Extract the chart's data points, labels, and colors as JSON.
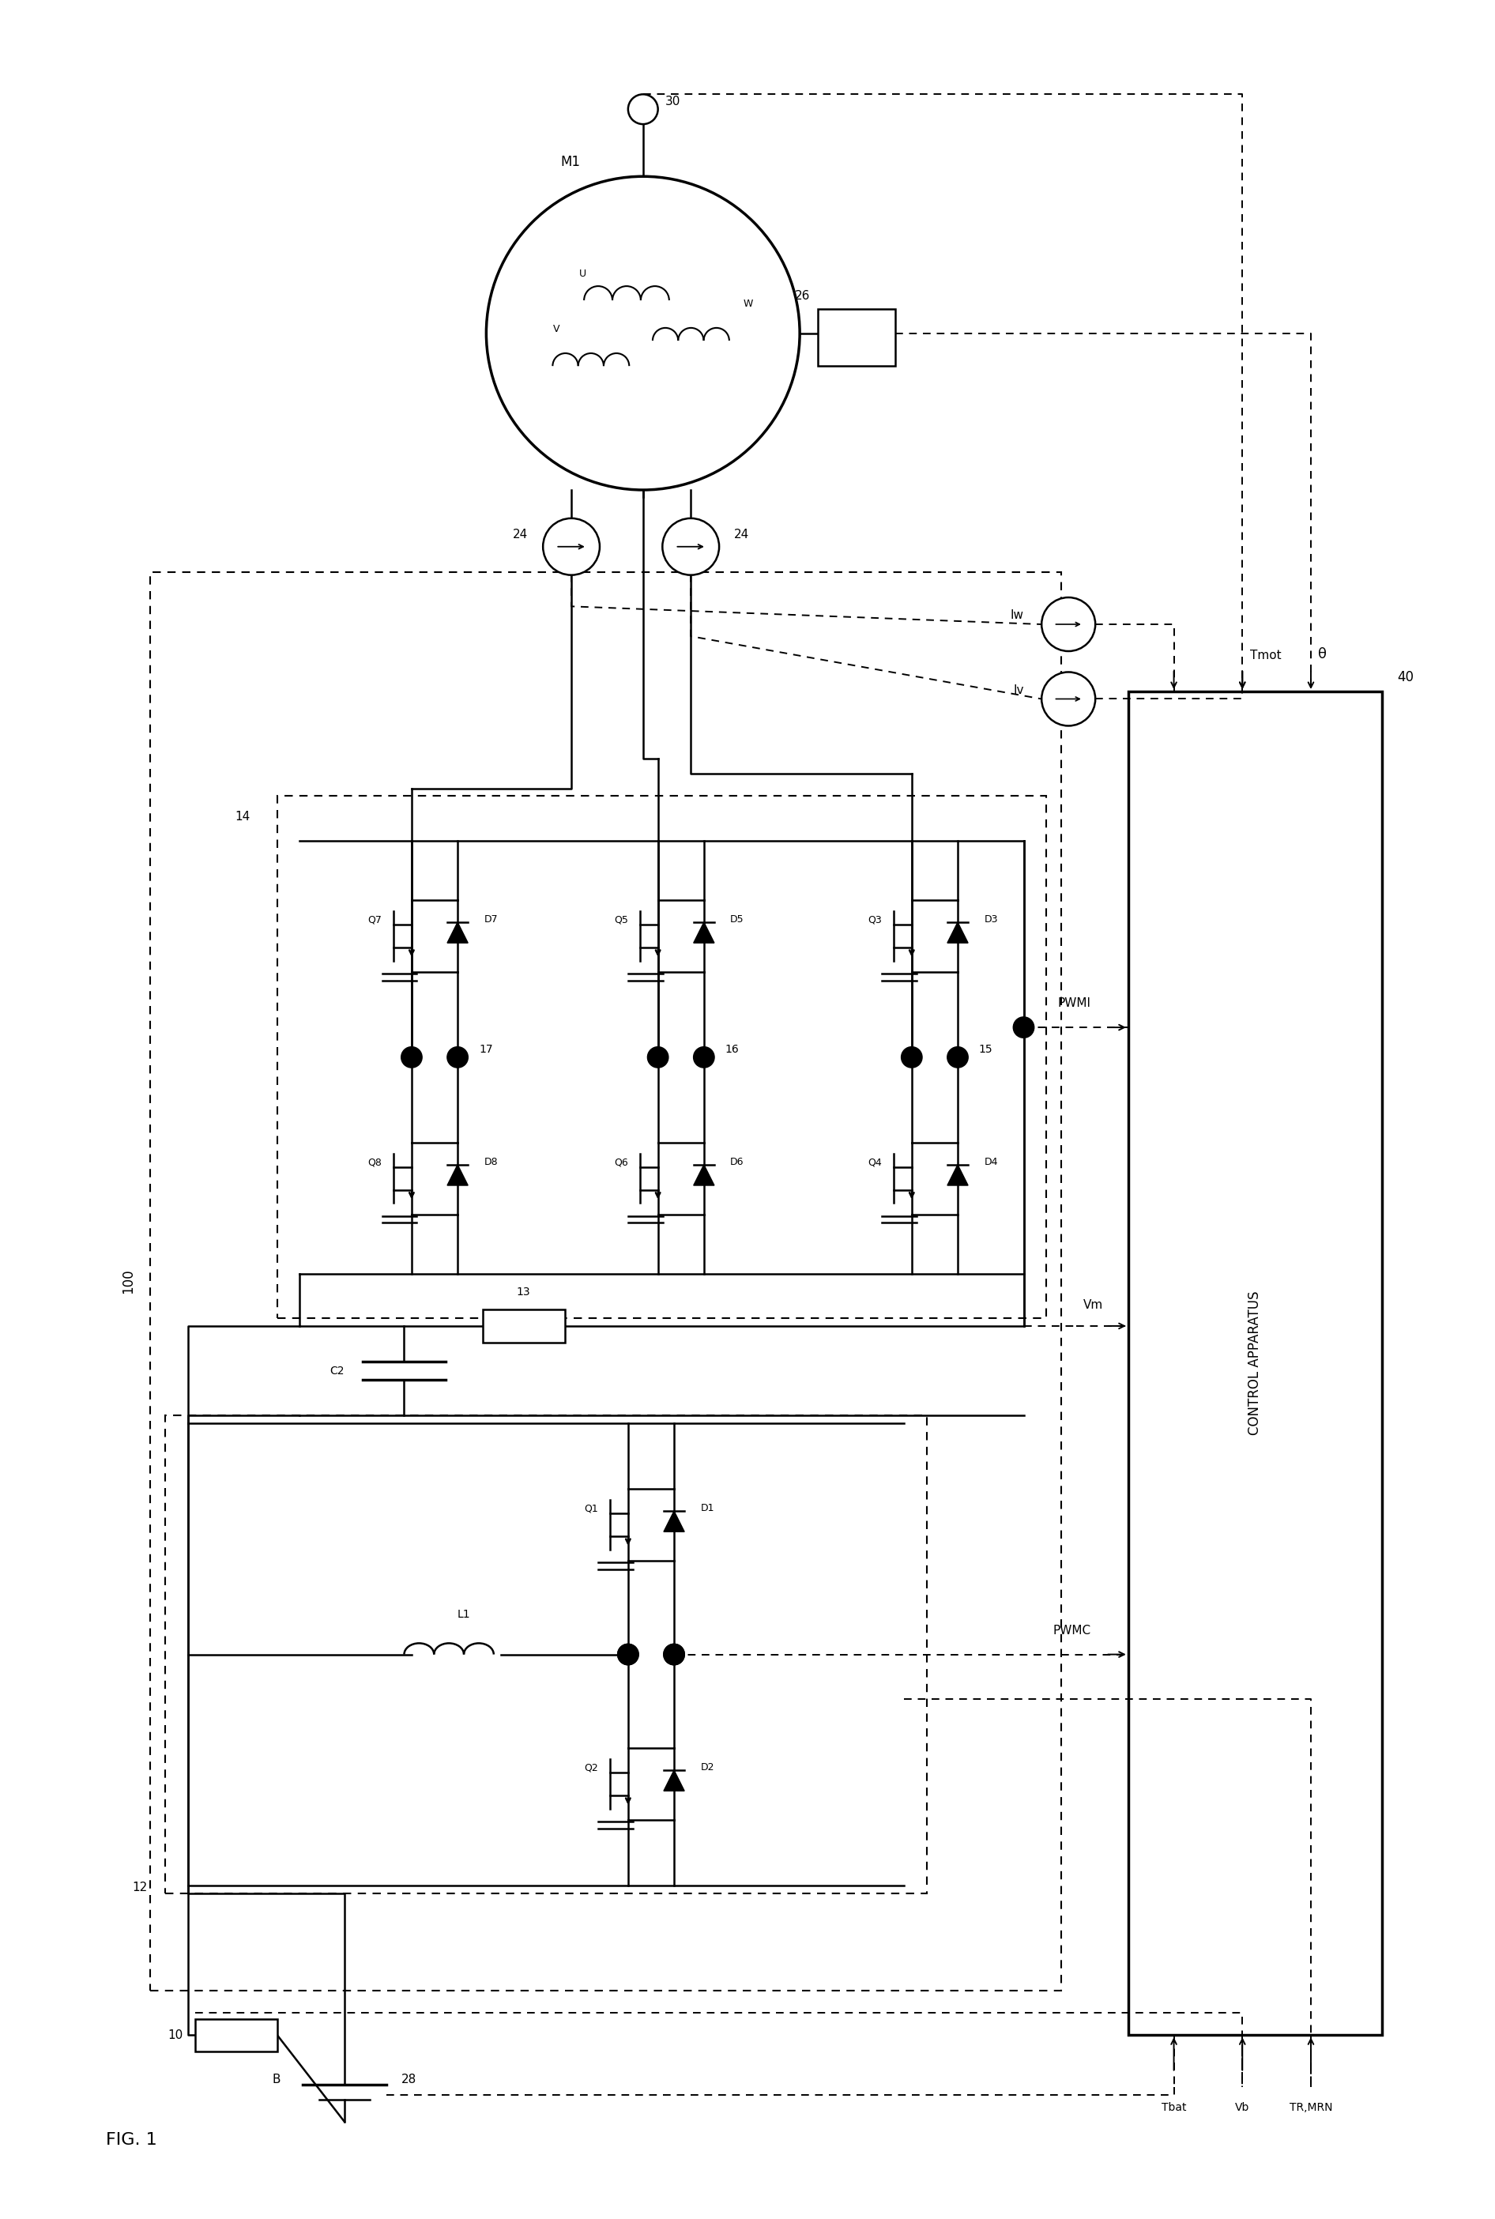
{
  "fig_label": "FIG.1",
  "bg_color": "#ffffff",
  "lw_main": 1.8,
  "lw_thick": 2.5,
  "lw_dash": 1.4,
  "component_labels": {
    "motor": "M1",
    "motor_terminal": "30",
    "resolver": "26",
    "cs_left": "24",
    "cs_right": "24",
    "inv_box": "14",
    "inv_ph_left": "17",
    "inv_ph_mid": "16",
    "inv_ph_right": "15",
    "q7": "Q7",
    "d7": "D7",
    "q8": "Q8",
    "d8": "D8",
    "q5": "Q5",
    "d5": "D5",
    "q6": "Q6",
    "d6": "D6",
    "q3": "Q3",
    "d3": "D3",
    "q4": "Q4",
    "d4": "D4",
    "q1": "Q1",
    "d1": "D1",
    "q2": "Q2",
    "d2": "D2",
    "reactor": "13",
    "cap": "C2",
    "conv_box": "12",
    "inductor": "L1",
    "battery_box": "B",
    "battery_ref": "28",
    "sense_res": "10",
    "outer_box": "100",
    "ctrl_box": "CONTROL APPARATUS",
    "ctrl_ref": "40"
  },
  "signal_labels": {
    "theta": "θ",
    "tmot": "Tmot",
    "iw": "Iw",
    "iv": "Iv",
    "pwmi": "PWMI",
    "vm": "Vm",
    "pwmc": "PWMC",
    "tbat": "Tbat",
    "vb": "Vb",
    "trmrn": "TR,MRN"
  },
  "coil_labels": {
    "u": "U",
    "v": "V",
    "w": "W"
  }
}
